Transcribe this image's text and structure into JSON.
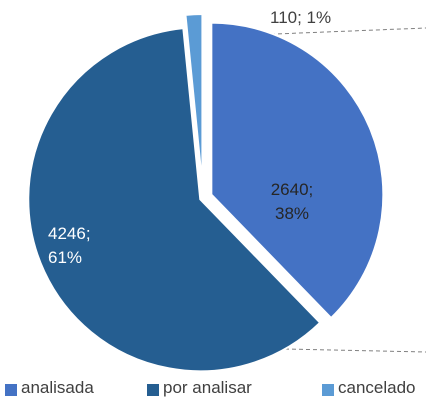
{
  "chart_data": {
    "type": "pie",
    "categories": [
      "analisada",
      "por analisar",
      "cancelado"
    ],
    "values": [
      2640,
      4246,
      110
    ],
    "value_labels": [
      "2640; 38%",
      "4246; 61%",
      "110; 1%"
    ],
    "colors": [
      "#4472c4",
      "#255e91",
      "#5b9bd5"
    ],
    "legend": "bottom"
  }
}
